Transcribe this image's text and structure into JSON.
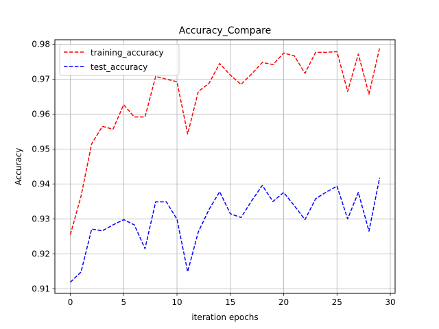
{
  "chart_data": {
    "type": "line",
    "title": "Accuracy_Compare",
    "xlabel": "iteration epochs",
    "ylabel": "Accuracy",
    "xlim": [
      -1.45,
      30.45
    ],
    "ylim": [
      0.9087,
      0.9813
    ],
    "xticks": [
      0,
      5,
      10,
      15,
      20,
      25,
      30
    ],
    "yticks": [
      0.91,
      0.92,
      0.93,
      0.94,
      0.95,
      0.96,
      0.97,
      0.98
    ],
    "ytick_labels": [
      "0.91",
      "0.92",
      "0.93",
      "0.94",
      "0.95",
      "0.96",
      "0.97",
      "0.98"
    ],
    "grid": true,
    "legend_position": "top-left",
    "x": [
      0,
      1,
      2,
      3,
      4,
      5,
      6,
      7,
      8,
      9,
      10,
      11,
      12,
      13,
      14,
      15,
      16,
      17,
      18,
      19,
      20,
      21,
      22,
      23,
      24,
      25,
      26,
      27,
      28,
      29
    ],
    "series": [
      {
        "name": "training_accuracy",
        "color": "#ff0000",
        "values": [
          0.9255,
          0.9365,
          0.9515,
          0.9565,
          0.9557,
          0.9627,
          0.9592,
          0.9592,
          0.9708,
          0.97,
          0.9693,
          0.9543,
          0.9665,
          0.9688,
          0.9745,
          0.9712,
          0.9685,
          0.9715,
          0.9748,
          0.9742,
          0.9775,
          0.9767,
          0.9717,
          0.9777,
          0.9777,
          0.9779,
          0.9665,
          0.9772,
          0.9657,
          0.979
        ]
      },
      {
        "name": "test_accuracy",
        "color": "#0000ff",
        "values": [
          0.9119,
          0.9148,
          0.9271,
          0.9266,
          0.9283,
          0.9298,
          0.9283,
          0.9215,
          0.9349,
          0.9349,
          0.9299,
          0.9149,
          0.9263,
          0.9327,
          0.9378,
          0.9315,
          0.9304,
          0.9352,
          0.9396,
          0.935,
          0.9376,
          0.9338,
          0.9298,
          0.9358,
          0.9377,
          0.9394,
          0.93,
          0.9376,
          0.9265,
          0.9418
        ]
      }
    ]
  }
}
